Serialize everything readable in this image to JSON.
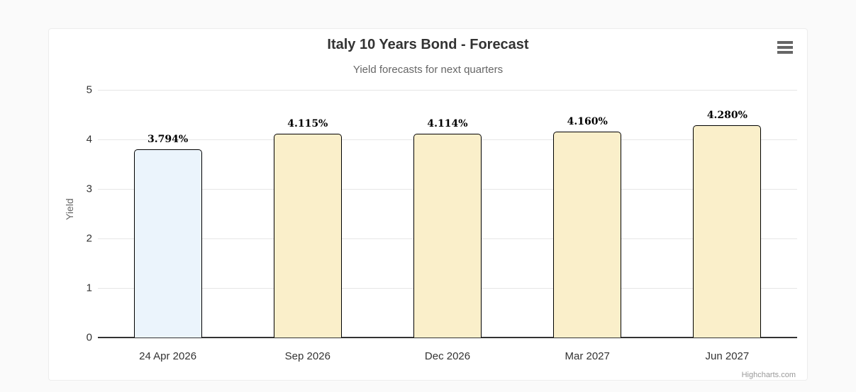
{
  "window": {
    "page_background": "#fafafa",
    "card_background": "#ffffff"
  },
  "toolbar": {
    "context_menu_icon": "hamburger-icon"
  },
  "chart_data": {
    "type": "bar",
    "title": "Italy 10 Years Bond - Forecast",
    "subtitle": "Yield forecasts for next quarters",
    "xlabel": "",
    "ylabel": "Yield",
    "ylim": [
      0,
      5
    ],
    "yticks": [
      0,
      1,
      2,
      3,
      4,
      5
    ],
    "grid": true,
    "legend": "none",
    "categories": [
      "24 Apr 2026",
      "Sep 2026",
      "Dec 2026",
      "Mar 2027",
      "Jun 2027"
    ],
    "values": [
      3.794,
      4.115,
      4.114,
      4.16,
      4.28
    ],
    "data_labels": [
      "3.794%",
      "4.115%",
      "4.114%",
      "4.160%",
      "4.280%"
    ],
    "bar_colors": [
      "#EBF4FC",
      "#FAEFCA",
      "#FAEFCA",
      "#FAEFCA",
      "#FAEFCA"
    ],
    "bar_border_color": "#000000",
    "gridline_color": "#e6e6e6",
    "axis_line_color": "#333333"
  },
  "credits": {
    "label": "Highcharts.com"
  }
}
